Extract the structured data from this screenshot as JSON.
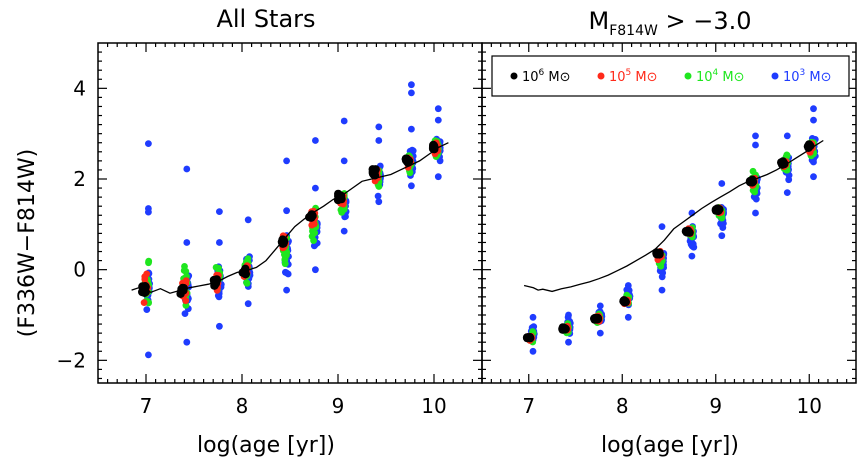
{
  "colors": {
    "1e6": "#000000",
    "1e5": "#ff2a1a",
    "1e4": "#1fe61f",
    "1e3": "#1f3cff"
  },
  "chart_data": [
    {
      "type": "scatter",
      "title": "All Stars",
      "xlabel": "log(age [yr])",
      "ylabel": "(F336W−F814W)",
      "xlim": [
        6.5,
        10.5
      ],
      "ylim": [
        -2.5,
        5.0
      ],
      "xticks": [
        "7",
        "8",
        "9",
        "10"
      ],
      "yticks": [
        "−2",
        "0",
        "2",
        "4"
      ],
      "line": {
        "x": [
          6.85,
          6.95,
          7.05,
          7.15,
          7.25,
          7.35,
          7.45,
          7.55,
          7.65,
          7.75,
          7.85,
          7.95,
          8.05,
          8.15,
          8.25,
          8.35,
          8.45,
          8.55,
          8.65,
          8.75,
          8.85,
          8.95,
          9.05,
          9.15,
          9.25,
          9.35,
          9.45,
          9.55,
          9.65,
          9.75,
          9.85,
          9.95,
          10.05,
          10.15
        ],
        "y": [
          -0.45,
          -0.38,
          -0.5,
          -0.42,
          -0.52,
          -0.46,
          -0.4,
          -0.36,
          -0.32,
          -0.26,
          -0.15,
          -0.06,
          -0.02,
          0.05,
          0.2,
          0.45,
          0.7,
          0.95,
          1.12,
          1.27,
          1.4,
          1.55,
          1.65,
          1.8,
          1.95,
          2.0,
          2.05,
          2.1,
          2.2,
          2.3,
          2.4,
          2.55,
          2.7,
          2.8
        ]
      },
      "clusters": [
        {
          "x": 6.98,
          "c6": -0.42,
          "s6": 0.14,
          "c5": -0.4,
          "s5": 0.4,
          "c4": -0.35,
          "s4": 0.65,
          "c3": -0.45,
          "s3": 0.75,
          "lo": -1.88,
          "hi": 1.35,
          "out": [
            2.78,
            1.27
          ]
        },
        {
          "x": 7.38,
          "c6": -0.45,
          "s6": 0.12,
          "c5": -0.42,
          "s5": 0.3,
          "c4": -0.35,
          "s4": 0.5,
          "c3": -0.55,
          "s3": 0.65,
          "lo": -1.6,
          "hi": 0.6,
          "out": [
            2.22
          ]
        },
        {
          "x": 7.72,
          "c6": -0.28,
          "s6": 0.12,
          "c5": -0.25,
          "s5": 0.25,
          "c4": -0.2,
          "s4": 0.45,
          "c3": -0.3,
          "s3": 0.55,
          "lo": -1.25,
          "hi": 0.6,
          "out": [
            1.28
          ]
        },
        {
          "x": 8.02,
          "c6": -0.04,
          "s6": 0.1,
          "c5": -0.02,
          "s5": 0.2,
          "c4": 0.0,
          "s4": 0.35,
          "c3": 0.0,
          "s3": 0.5,
          "lo": -0.75,
          "hi": 1.1
        },
        {
          "x": 8.42,
          "c6": 0.6,
          "s6": 0.12,
          "c5": 0.55,
          "s5": 0.3,
          "c4": 0.4,
          "s4": 0.5,
          "c3": 0.3,
          "s3": 0.6,
          "lo": -0.45,
          "hi": 1.3,
          "out": [
            2.4
          ]
        },
        {
          "x": 8.72,
          "c6": 1.2,
          "s6": 0.12,
          "c5": 1.15,
          "s5": 0.3,
          "c4": 1.0,
          "s4": 0.45,
          "c3": 0.9,
          "s3": 0.55,
          "lo": 0.0,
          "hi": 1.8,
          "out": [
            2.85
          ]
        },
        {
          "x": 9.02,
          "c6": 1.6,
          "s6": 0.12,
          "c5": 1.55,
          "s5": 0.25,
          "c4": 1.45,
          "s4": 0.4,
          "c3": 1.35,
          "s3": 0.5,
          "lo": 0.85,
          "hi": 2.4,
          "out": [
            3.28
          ]
        },
        {
          "x": 9.38,
          "c6": 2.15,
          "s6": 0.1,
          "c5": 2.1,
          "s5": 0.2,
          "c4": 2.05,
          "s4": 0.35,
          "c3": 2.0,
          "s3": 0.45,
          "lo": 1.5,
          "hi": 2.85,
          "out": [
            3.15
          ]
        },
        {
          "x": 9.72,
          "c6": 2.42,
          "s6": 0.1,
          "c5": 2.4,
          "s5": 0.22,
          "c4": 2.4,
          "s4": 0.35,
          "c3": 2.4,
          "s3": 0.45,
          "lo": 1.85,
          "hi": 3.1,
          "out": [
            4.08,
            3.9
          ]
        },
        {
          "x": 10.0,
          "c6": 2.72,
          "s6": 0.1,
          "c5": 2.7,
          "s5": 0.2,
          "c4": 2.65,
          "s4": 0.35,
          "c3": 2.6,
          "s3": 0.4,
          "lo": 2.05,
          "hi": 3.3,
          "out": [
            3.55
          ]
        }
      ]
    },
    {
      "type": "scatter",
      "title_main": "M",
      "title_sub": "F814W",
      "title_rest": " > −3.0",
      "xlabel": "log(age [yr])",
      "xlim": [
        6.5,
        10.5
      ],
      "ylim": [
        -2.5,
        5.0
      ],
      "xticks": [
        "7",
        "8",
        "9",
        "10"
      ],
      "legend": {
        "position": "top",
        "items": [
          {
            "base": "10",
            "exp": "6",
            "unit": " M⊙",
            "color": "#000000"
          },
          {
            "base": "10",
            "exp": "5",
            "unit": " M⊙",
            "color": "#ff2a1a"
          },
          {
            "base": "10",
            "exp": "4",
            "unit": " M⊙",
            "color": "#1fe61f"
          },
          {
            "base": "10",
            "exp": "3",
            "unit": " M⊙",
            "color": "#1f3cff"
          }
        ]
      },
      "line": {
        "x": [
          6.95,
          7.05,
          7.1,
          7.15,
          7.25,
          7.35,
          7.45,
          7.55,
          7.65,
          7.75,
          7.85,
          7.95,
          8.05,
          8.15,
          8.25,
          8.35,
          8.45,
          8.55,
          8.65,
          8.75,
          8.85,
          8.95,
          9.05,
          9.15,
          9.25,
          9.35,
          9.45,
          9.55,
          9.65,
          9.75,
          9.85,
          9.95,
          10.05,
          10.15
        ],
        "y": [
          -0.35,
          -0.4,
          -0.45,
          -0.43,
          -0.48,
          -0.42,
          -0.38,
          -0.32,
          -0.27,
          -0.2,
          -0.12,
          -0.02,
          0.08,
          0.2,
          0.32,
          0.45,
          0.65,
          0.9,
          1.05,
          1.2,
          1.35,
          1.48,
          1.6,
          1.72,
          1.85,
          1.95,
          2.02,
          2.1,
          2.2,
          2.32,
          2.45,
          2.58,
          2.72,
          2.85
        ]
      },
      "clusters": [
        {
          "x": 7.0,
          "c6": -1.5,
          "s6": 0.04,
          "c5": -1.5,
          "s5": 0.08,
          "c4": -1.5,
          "s4": 0.15,
          "c3": -1.45,
          "s3": 0.25,
          "lo": -1.8,
          "hi": -1.05
        },
        {
          "x": 7.38,
          "c6": -1.3,
          "s6": 0.04,
          "c5": -1.3,
          "s5": 0.08,
          "c4": -1.3,
          "s4": 0.15,
          "c3": -1.25,
          "s3": 0.25,
          "lo": -1.6,
          "hi": -1.0
        },
        {
          "x": 7.72,
          "c6": -1.08,
          "s6": 0.04,
          "c5": -1.08,
          "s5": 0.08,
          "c4": -1.05,
          "s4": 0.15,
          "c3": -1.05,
          "s3": 0.25,
          "lo": -1.4,
          "hi": -0.8
        },
        {
          "x": 8.02,
          "c6": -0.7,
          "s6": 0.04,
          "c5": -0.7,
          "s5": 0.08,
          "c4": -0.65,
          "s4": 0.15,
          "c3": -0.6,
          "s3": 0.25,
          "lo": -1.05,
          "hi": -0.35
        },
        {
          "x": 8.38,
          "c6": 0.35,
          "s6": 0.05,
          "c5": 0.3,
          "s5": 0.15,
          "c4": 0.25,
          "s4": 0.3,
          "c3": 0.15,
          "s3": 0.45,
          "lo": -0.45,
          "hi": 0.95
        },
        {
          "x": 8.7,
          "c6": 0.85,
          "s6": 0.05,
          "c5": 0.85,
          "s5": 0.12,
          "c4": 0.8,
          "s4": 0.25,
          "c3": 0.75,
          "s3": 0.35,
          "lo": 0.3,
          "hi": 1.25
        },
        {
          "x": 9.02,
          "c6": 1.32,
          "s6": 0.05,
          "c5": 1.3,
          "s5": 0.12,
          "c4": 1.25,
          "s4": 0.25,
          "c3": 1.2,
          "s3": 0.35,
          "lo": 0.75,
          "hi": 1.9
        },
        {
          "x": 9.38,
          "c6": 1.95,
          "s6": 0.06,
          "c5": 1.95,
          "s5": 0.15,
          "c4": 1.9,
          "s4": 0.3,
          "c3": 1.85,
          "s3": 0.45,
          "lo": 1.25,
          "hi": 2.75,
          "out": [
            2.95
          ]
        },
        {
          "x": 9.72,
          "c6": 2.35,
          "s6": 0.06,
          "c5": 2.35,
          "s5": 0.15,
          "c4": 2.35,
          "s4": 0.3,
          "c3": 2.3,
          "s3": 0.4,
          "lo": 1.7,
          "hi": 2.95
        },
        {
          "x": 10.0,
          "c6": 2.72,
          "s6": 0.06,
          "c5": 2.7,
          "s5": 0.15,
          "c4": 2.68,
          "s4": 0.3,
          "c3": 2.6,
          "s3": 0.4,
          "lo": 2.05,
          "hi": 3.3,
          "out": [
            3.55
          ]
        }
      ]
    }
  ]
}
